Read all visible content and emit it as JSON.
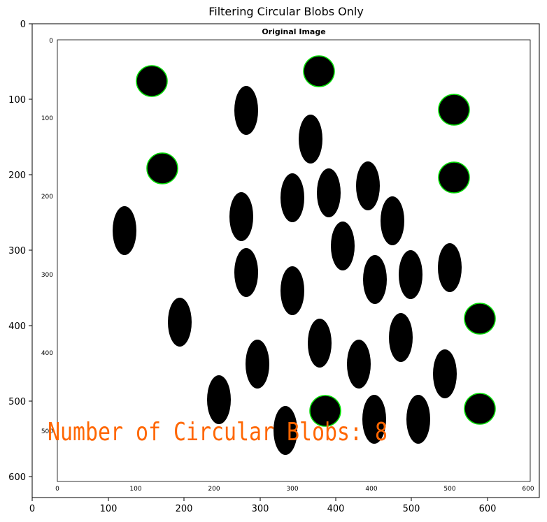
{
  "figure": {
    "title": "Filtering Circular Blobs Only",
    "x_ticks": [
      "0",
      "100",
      "200",
      "300",
      "400",
      "500",
      "600"
    ],
    "y_ticks": [
      "0",
      "100",
      "200",
      "300",
      "400",
      "500",
      "600"
    ]
  },
  "image": {
    "inner_title": "Original Image",
    "inner_x_ticks": [
      "0",
      "100",
      "200",
      "300",
      "400",
      "500",
      "600"
    ],
    "inner_y_ticks": [
      "0",
      "100",
      "200",
      "300",
      "400",
      "500"
    ],
    "overlay_text": "Number of Circular Blobs: 8",
    "colors": {
      "blob": "#000000",
      "circle_outline": "#00dd00",
      "overlay_text": "#ff6600"
    },
    "circular_blob_count": 8
  }
}
